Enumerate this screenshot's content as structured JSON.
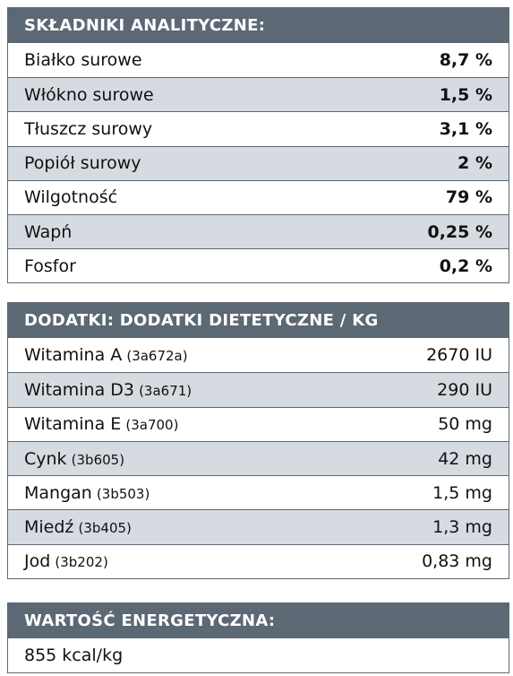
{
  "analytical": {
    "title": "SKŁADNIKI ANALITYCZNE:",
    "rows": [
      {
        "label": "Białko surowe",
        "value": "8,7 %"
      },
      {
        "label": "Włókno surowe",
        "value": "1,5 %"
      },
      {
        "label": "Tłuszcz surowy",
        "value": "3,1 %"
      },
      {
        "label": "Popiół surowy",
        "value": "2 %"
      },
      {
        "label": "Wilgotność",
        "value": "79 %"
      },
      {
        "label": "Wapń",
        "value": "0,25 %"
      },
      {
        "label": "Fosfor",
        "value": "0,2 %"
      }
    ]
  },
  "additives": {
    "title": "DODATKI: DODATKI DIETETYCZNE / KG",
    "rows": [
      {
        "label": "Witamina A",
        "code": "(3a672a)",
        "value": "2670 IU"
      },
      {
        "label": "Witamina D3",
        "code": "(3a671)",
        "value": "290 IU"
      },
      {
        "label": "Witamina E",
        "code": "(3a700)",
        "value": "50 mg"
      },
      {
        "label": "Cynk",
        "code": "(3b605)",
        "value": "42 mg"
      },
      {
        "label": "Mangan",
        "code": "(3b503)",
        "value": "1,5 mg"
      },
      {
        "label": "Miedź",
        "code": "(3b405)",
        "value": "1,3 mg"
      },
      {
        "label": "Jod",
        "code": "(3b202)",
        "value": "0,83 mg"
      }
    ]
  },
  "energy": {
    "title": "WARTOŚĆ ENERGETYCZNA:",
    "value": "855 kcal/kg"
  }
}
